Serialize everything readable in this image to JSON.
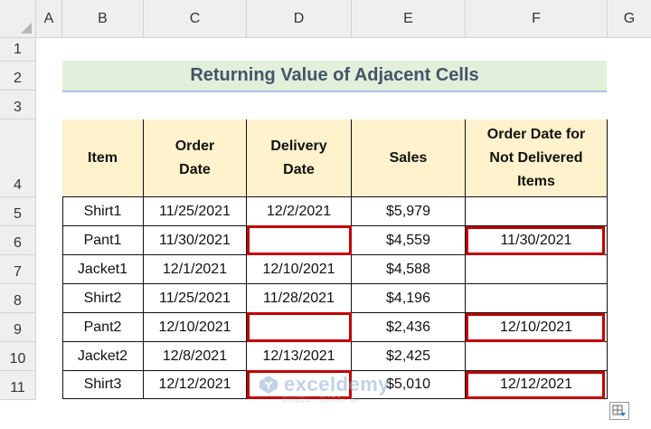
{
  "columns": [
    "A",
    "B",
    "C",
    "D",
    "E",
    "F",
    "G"
  ],
  "rows": [
    "1",
    "2",
    "3",
    "4",
    "5",
    "6",
    "7",
    "8",
    "9",
    "10",
    "11"
  ],
  "title": "Returning Value of Adjacent Cells",
  "table": {
    "headers": [
      "Item",
      "Order\nDate",
      "Delivery\nDate",
      "Sales",
      "Order Date for\nNot Delivered\nItems"
    ],
    "rows": [
      [
        "Shirt1",
        "11/25/2021",
        "12/2/2021",
        "$5,979",
        ""
      ],
      [
        "Pant1",
        "11/30/2021",
        "",
        "$4,559",
        "11/30/2021"
      ],
      [
        "Jacket1",
        "12/1/2021",
        "12/10/2021",
        "$4,588",
        ""
      ],
      [
        "Shirt2",
        "11/25/2021",
        "11/28/2021",
        "$4,196",
        ""
      ],
      [
        "Pant2",
        "12/10/2021",
        "",
        "$2,436",
        "12/10/2021"
      ],
      [
        "Jacket2",
        "12/8/2021",
        "12/13/2021",
        "$2,425",
        ""
      ],
      [
        "Shirt3",
        "12/12/2021",
        "",
        "$5,010",
        "12/12/2021"
      ]
    ]
  },
  "highlight_color": "#c00000",
  "watermark": {
    "name": "exceldemy",
    "tagline": "EXCEL · DATA · BI"
  },
  "icons": {
    "quick_analysis": "quick-analysis-icon",
    "select_all": "select-all-icon"
  }
}
